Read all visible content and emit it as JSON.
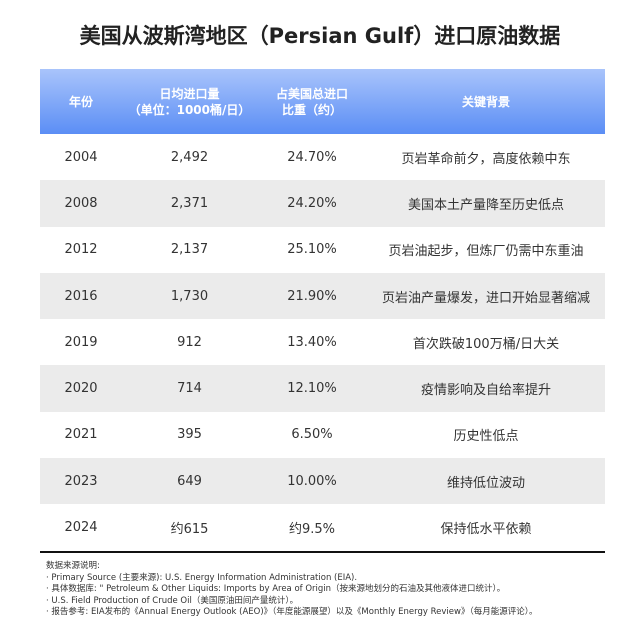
{
  "title": "美国从波斯湾地区（Persian Gulf）进口原油数据",
  "headers": [
    "年份",
    "日均进口量\n（单位：1000桶/日）",
    "占美国总进口\n比重（约）",
    "关键背景"
  ],
  "rows": [
    [
      "2004",
      "2,492",
      "24.70%",
      "页岩革命前夕，高度依赖中东"
    ],
    [
      "2008",
      "2,371",
      "24.20%",
      "美国本土产量降至历史低点"
    ],
    [
      "2012",
      "2,137",
      "25.10%",
      "页岩油起步，但炼厂仍需中东重油"
    ],
    [
      "2016",
      "1,730",
      "21.90%",
      "页岩油产量爆发，进口开始显著缩减"
    ],
    [
      "2019",
      "912",
      "13.40%",
      "首次跌破100万桶/日大关"
    ],
    [
      "2020",
      "714",
      "12.10%",
      "疫情影响及自给率提升"
    ],
    [
      "2021",
      "395",
      "6.50%",
      "历史性低点"
    ],
    [
      "2023",
      "649",
      "10.00%",
      "维持低位波动"
    ],
    [
      "2024",
      "约615",
      "约9.5%",
      "保持低水平依赖"
    ]
  ],
  "notes": {
    "heading": "数据来源说明:",
    "items": [
      "· Primary Source (主要来源): U.S. Energy Information Administration (EIA).",
      "· 具体数据库: \" Petroleum & Other Liquids: Imports by Area of Origin（按来源地划分的石油及其他液体进口统计）。",
      "· U.S. Field Production of Crude Oil（美国原油田间产量统计）。",
      "· 报告参考: EIA发布的《Annual Energy Outlook (AEO)》（年度能源展望）以及《Monthly Energy Review》（每月能源评论）。"
    ]
  },
  "colors": {
    "header_top": "#a9c4fb",
    "header_bottom": "#5b8ef5",
    "alt_row": "#ebebeb"
  }
}
